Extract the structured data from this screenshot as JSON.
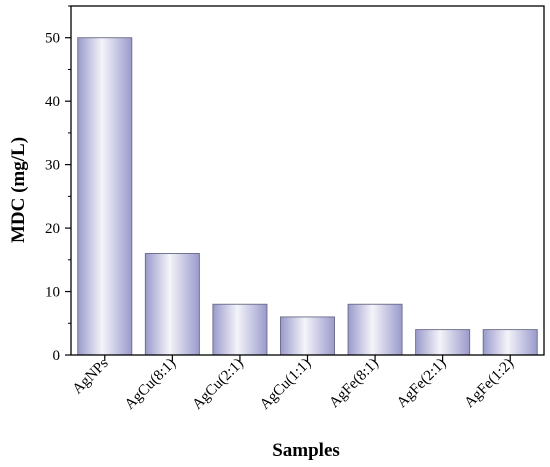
{
  "chart_data": {
    "type": "bar",
    "title": "",
    "xlabel": "Samples",
    "ylabel": "MDC (mg/L)",
    "categories": [
      "AgNPs",
      "AgCu(8:1)",
      "AgCu(2:1)",
      "AgCu(1:1)",
      "AgFe(8:1)",
      "AgFe(2:1)",
      "AgFe(1:2)"
    ],
    "values": [
      50,
      16,
      8,
      6,
      8,
      4,
      4
    ],
    "ylim": [
      0,
      55
    ],
    "yticks": [
      0,
      10,
      20,
      30,
      40,
      50
    ],
    "grid": false,
    "legend": "none",
    "bar_color": {
      "edge": "#9a9acc",
      "center": "#f4f4fa",
      "stroke": "#6a6a86"
    }
  }
}
